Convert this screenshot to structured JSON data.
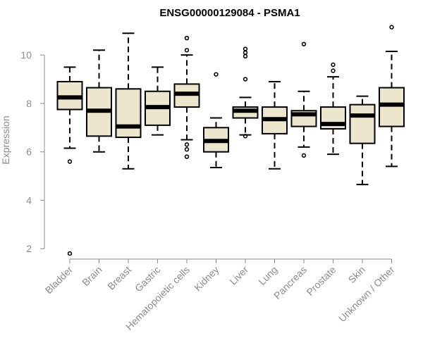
{
  "colors": {
    "box_fill": "#ede6cf",
    "axis": "#8c8c8c",
    "ink": "#000000"
  },
  "chart_data": {
    "type": "boxplot",
    "title": "ENSG00000129084 - PSMA1",
    "xlabel": "",
    "ylabel": "Expression",
    "ylim": [
      1.6,
      11.4
    ],
    "yticks": [
      2,
      4,
      6,
      8,
      10
    ],
    "ytick_labels": [
      "2",
      "4",
      "6",
      "8",
      "10"
    ],
    "categories": [
      "Bladder",
      "Brain",
      "Breast",
      "Gastric",
      "Hematopoietic cells",
      "Kidney",
      "Liver",
      "Lung",
      "Pancreas",
      "Prostate",
      "Skin",
      "Unknown / Other"
    ],
    "boxes": [
      {
        "q1": 7.75,
        "median": 8.25,
        "q3": 8.9,
        "whisker_low": 6.15,
        "whisker_high": 9.5,
        "outliers": [
          5.6,
          1.8
        ]
      },
      {
        "q1": 6.65,
        "median": 7.7,
        "q3": 8.65,
        "whisker_low": 6.0,
        "whisker_high": 10.2,
        "outliers": []
      },
      {
        "q1": 6.6,
        "median": 7.05,
        "q3": 8.6,
        "whisker_low": 5.3,
        "whisker_high": 10.9,
        "outliers": []
      },
      {
        "q1": 7.1,
        "median": 7.85,
        "q3": 8.5,
        "whisker_low": 6.7,
        "whisker_high": 9.5,
        "outliers": []
      },
      {
        "q1": 7.85,
        "median": 8.4,
        "q3": 8.8,
        "whisker_low": 6.5,
        "whisker_high": 10.0,
        "outliers": [
          10.7,
          10.2,
          6.3,
          6.1,
          5.8
        ]
      },
      {
        "q1": 6.0,
        "median": 6.45,
        "q3": 7.0,
        "whisker_low": 5.35,
        "whisker_high": 7.4,
        "outliers": [
          9.2
        ]
      },
      {
        "q1": 7.4,
        "median": 7.7,
        "q3": 7.85,
        "whisker_low": 6.7,
        "whisker_high": 8.25,
        "outliers": [
          10.25,
          10.1,
          9.95,
          9.0,
          6.65
        ]
      },
      {
        "q1": 6.75,
        "median": 7.35,
        "q3": 7.85,
        "whisker_low": 5.3,
        "whisker_high": 8.9,
        "outliers": []
      },
      {
        "q1": 7.05,
        "median": 7.55,
        "q3": 7.7,
        "whisker_low": 6.2,
        "whisker_high": 8.5,
        "outliers": [
          10.45,
          5.85
        ]
      },
      {
        "q1": 6.95,
        "median": 7.15,
        "q3": 7.85,
        "whisker_low": 5.9,
        "whisker_high": 9.1,
        "outliers": [
          9.6,
          9.35
        ]
      },
      {
        "q1": 6.35,
        "median": 7.5,
        "q3": 7.95,
        "whisker_low": 4.65,
        "whisker_high": 8.3,
        "outliers": []
      },
      {
        "q1": 7.05,
        "median": 7.95,
        "q3": 8.65,
        "whisker_low": 5.4,
        "whisker_high": 10.15,
        "outliers": [
          11.15
        ]
      }
    ]
  }
}
